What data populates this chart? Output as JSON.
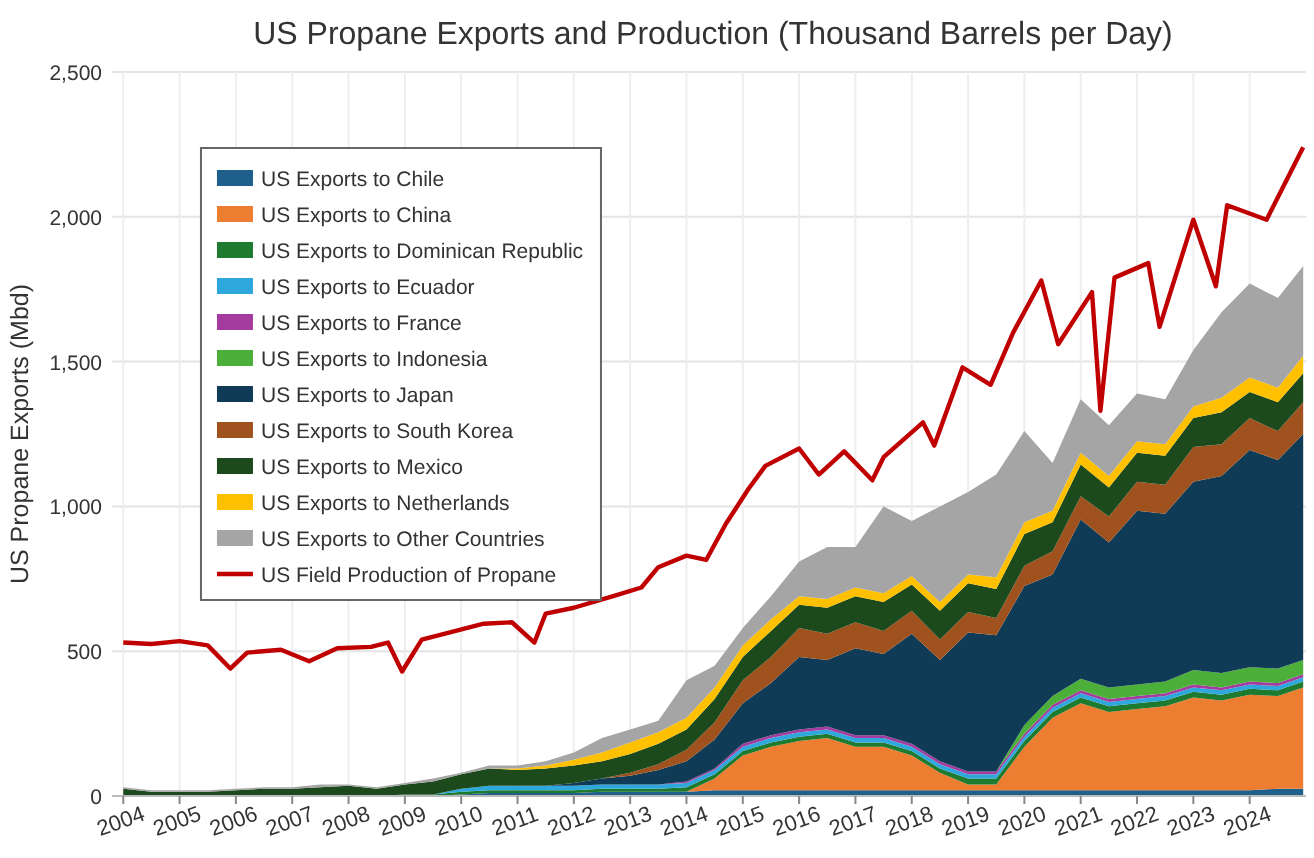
{
  "chart_data": {
    "type": "area",
    "stacked": true,
    "title": "US Propane Exports and Production (Thousand Barrels per Day)",
    "ylabel": "US Propane Exports (Mbd)",
    "legend": "top left",
    "grid": true,
    "x": [
      2004,
      2004.5,
      2005,
      2005.5,
      2006,
      2006.5,
      2007,
      2007.5,
      2008,
      2008.5,
      2009,
      2009.5,
      2010,
      2010.5,
      2011,
      2011.5,
      2012,
      2012.5,
      2013,
      2013.5,
      2014,
      2014.5,
      2015,
      2015.5,
      2016,
      2016.5,
      2017,
      2017.5,
      2018,
      2018.5,
      2019,
      2019.5,
      2020,
      2020.5,
      2021,
      2021.5,
      2022,
      2022.5,
      2023,
      2023.5,
      2024,
      2024.5,
      2024.95
    ],
    "xlim": [
      2003.8,
      2025
    ],
    "xticks": [
      2004,
      2005,
      2006,
      2007,
      2008,
      2009,
      2010,
      2011,
      2012,
      2013,
      2014,
      2015,
      2016,
      2017,
      2018,
      2019,
      2020,
      2021,
      2022,
      2023,
      2024
    ],
    "ylim": [
      0,
      2500
    ],
    "yticks": [
      0,
      500,
      {
        "value": 1000,
        "label": "1,000"
      },
      {
        "value": 1500,
        "label": "1,500"
      },
      {
        "value": 2000,
        "label": "2,000"
      },
      {
        "value": 2500,
        "label": "2,500"
      }
    ],
    "series": [
      {
        "name": "US Exports to Chile",
        "color": "#1f5f8b",
        "values": [
          0,
          0,
          0,
          0,
          0,
          0,
          0,
          0,
          0,
          0,
          0,
          0,
          5,
          10,
          10,
          10,
          10,
          15,
          15,
          15,
          15,
          20,
          20,
          20,
          20,
          20,
          20,
          20,
          20,
          20,
          20,
          20,
          20,
          20,
          20,
          20,
          20,
          20,
          20,
          20,
          20,
          25,
          25
        ]
      },
      {
        "name": "US Exports to China",
        "color": "#ed7d31",
        "values": [
          0,
          0,
          0,
          0,
          0,
          0,
          0,
          0,
          0,
          0,
          0,
          0,
          0,
          0,
          0,
          0,
          0,
          0,
          0,
          0,
          0,
          40,
          120,
          150,
          170,
          180,
          150,
          150,
          120,
          60,
          20,
          20,
          150,
          250,
          300,
          270,
          280,
          290,
          320,
          310,
          330,
          320,
          350
        ]
      },
      {
        "name": "US Exports to Dominican Republic",
        "color": "#1e7a2e",
        "values": [
          0,
          0,
          0,
          0,
          0,
          0,
          0,
          0,
          0,
          0,
          5,
          5,
          10,
          10,
          10,
          10,
          10,
          10,
          10,
          10,
          15,
          15,
          15,
          15,
          15,
          15,
          15,
          15,
          15,
          15,
          20,
          20,
          20,
          20,
          20,
          20,
          20,
          20,
          20,
          20,
          20,
          20,
          20
        ]
      },
      {
        "name": "US Exports to Ecuador",
        "color": "#2ea8dc",
        "values": [
          0,
          0,
          0,
          0,
          0,
          0,
          0,
          0,
          0,
          0,
          0,
          0,
          10,
          15,
          15,
          15,
          15,
          15,
          15,
          15,
          15,
          15,
          15,
          15,
          15,
          15,
          15,
          15,
          15,
          15,
          15,
          15,
          15,
          15,
          15,
          15,
          15,
          15,
          15,
          15,
          15,
          15,
          15
        ]
      },
      {
        "name": "US Exports to France",
        "color": "#a43ca0",
        "values": [
          0,
          0,
          0,
          0,
          0,
          0,
          0,
          0,
          0,
          0,
          0,
          0,
          0,
          0,
          0,
          0,
          0,
          0,
          0,
          0,
          5,
          5,
          10,
          10,
          10,
          10,
          10,
          10,
          10,
          10,
          10,
          10,
          10,
          10,
          10,
          10,
          10,
          10,
          10,
          10,
          10,
          10,
          10
        ]
      },
      {
        "name": "US Exports to Indonesia",
        "color": "#4caf3a",
        "values": [
          0,
          0,
          0,
          0,
          0,
          0,
          0,
          0,
          0,
          0,
          0,
          0,
          0,
          0,
          0,
          0,
          0,
          0,
          0,
          0,
          0,
          0,
          0,
          0,
          0,
          0,
          0,
          0,
          0,
          0,
          0,
          0,
          30,
          30,
          40,
          40,
          40,
          40,
          50,
          50,
          50,
          50,
          50
        ]
      },
      {
        "name": "US Exports to Japan",
        "color": "#0f3b57",
        "values": [
          0,
          0,
          0,
          0,
          0,
          0,
          0,
          0,
          0,
          0,
          0,
          0,
          0,
          0,
          0,
          0,
          10,
          20,
          30,
          50,
          70,
          100,
          140,
          180,
          250,
          230,
          300,
          280,
          380,
          350,
          480,
          470,
          480,
          420,
          550,
          500,
          600,
          580,
          650,
          680,
          750,
          720,
          780
        ]
      },
      {
        "name": "US Exports to South Korea",
        "color": "#a0521e",
        "values": [
          0,
          0,
          0,
          0,
          0,
          0,
          0,
          0,
          0,
          0,
          0,
          0,
          0,
          0,
          0,
          0,
          0,
          0,
          10,
          20,
          40,
          60,
          80,
          90,
          100,
          90,
          90,
          80,
          80,
          70,
          70,
          60,
          70,
          80,
          80,
          90,
          100,
          100,
          120,
          110,
          110,
          100,
          110
        ]
      },
      {
        "name": "US Exports to Mexico",
        "color": "#1c4a1c",
        "values": [
          25,
          15,
          15,
          15,
          20,
          25,
          25,
          30,
          35,
          25,
          35,
          45,
          50,
          60,
          55,
          60,
          60,
          60,
          65,
          70,
          70,
          80,
          80,
          90,
          80,
          90,
          90,
          100,
          90,
          100,
          100,
          100,
          110,
          100,
          110,
          100,
          100,
          100,
          100,
          110,
          90,
          100,
          100
        ]
      },
      {
        "name": "US Exports to Netherlands",
        "color": "#ffc000",
        "values": [
          0,
          0,
          0,
          0,
          0,
          0,
          0,
          0,
          0,
          0,
          0,
          0,
          0,
          0,
          5,
          10,
          20,
          30,
          40,
          40,
          40,
          40,
          40,
          40,
          30,
          30,
          30,
          30,
          30,
          30,
          30,
          40,
          40,
          40,
          40,
          40,
          40,
          40,
          40,
          50,
          50,
          50,
          60
        ]
      },
      {
        "name": "US Exports to Other Countries",
        "color": "#a5a5a5",
        "values": [
          5,
          5,
          5,
          5,
          5,
          5,
          5,
          10,
          5,
          5,
          5,
          10,
          5,
          10,
          10,
          15,
          25,
          50,
          45,
          40,
          130,
          75,
          60,
          80,
          120,
          180,
          140,
          300,
          190,
          330,
          285,
          355,
          315,
          165,
          185,
          175,
          165,
          155,
          195,
          295,
          325,
          310,
          310
        ]
      },
      {
        "name": "US Field Production of Propane",
        "type": "line",
        "color": "#c00000",
        "x": [
          2004,
          2004.5,
          2005,
          2005.5,
          2005.9,
          2006.2,
          2006.8,
          2007.3,
          2007.8,
          2008.4,
          2008.7,
          2008.95,
          2009.3,
          2009.8,
          2010.4,
          2010.9,
          2011.3,
          2011.5,
          2012,
          2012.7,
          2013.2,
          2013.5,
          2014,
          2014.35,
          2014.7,
          2015.1,
          2015.4,
          2016,
          2016.35,
          2016.8,
          2017.3,
          2017.5,
          2018.2,
          2018.4,
          2018.9,
          2019.4,
          2019.8,
          2020.3,
          2020.6,
          2021.2,
          2021.35,
          2021.6,
          2022.2,
          2022.4,
          2023,
          2023.4,
          2023.6,
          2024.3,
          2024.95
        ],
        "values": [
          530,
          525,
          535,
          520,
          440,
          495,
          505,
          465,
          510,
          515,
          530,
          430,
          540,
          565,
          595,
          600,
          530,
          630,
          650,
          690,
          720,
          790,
          830,
          815,
          940,
          1060,
          1140,
          1200,
          1110,
          1190,
          1090,
          1170,
          1290,
          1210,
          1480,
          1420,
          1600,
          1780,
          1560,
          1740,
          1330,
          1790,
          1840,
          1620,
          1990,
          1760,
          2040,
          1990,
          2240
        ]
      }
    ]
  }
}
